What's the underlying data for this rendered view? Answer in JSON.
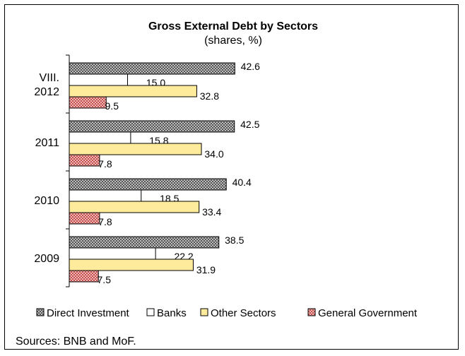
{
  "chart_data": {
    "type": "bar",
    "orientation": "horizontal",
    "title": "Gross External Debt by Sectors",
    "subtitle": "(shares, %)",
    "categories": [
      "VIII. 2012",
      "2011",
      "2010",
      "2009"
    ],
    "category_lines": [
      [
        "VIII.",
        "2012"
      ],
      [
        "2011"
      ],
      [
        "2010"
      ],
      [
        "2009"
      ]
    ],
    "series": [
      {
        "name": "Direct Investment",
        "values": [
          42.6,
          42.5,
          40.4,
          38.5
        ],
        "labels": [
          "42.6",
          "42.5",
          "40.4",
          "38.5"
        ],
        "color": "#8c8c8c",
        "pattern": "checker"
      },
      {
        "name": "Banks",
        "values": [
          15.0,
          15.8,
          18.5,
          22.2
        ],
        "labels": [
          "15.0",
          "15.8",
          "18.5",
          "22.2"
        ],
        "color": "#ffffff",
        "pattern": "none"
      },
      {
        "name": "Other Sectors",
        "values": [
          32.8,
          34.0,
          33.4,
          31.9
        ],
        "labels": [
          "32.8",
          "34.0",
          "33.4",
          "31.9"
        ],
        "color": "#ffeb9c",
        "pattern": "none"
      },
      {
        "name": "General Government",
        "values": [
          9.5,
          7.8,
          7.8,
          7.5
        ],
        "labels": [
          "9.5",
          "7.8",
          "7.8",
          "7.5"
        ],
        "color": "#e89090",
        "pattern": "dots"
      }
    ],
    "xlim": [
      0,
      50
    ],
    "grid": false,
    "legend": "bottom",
    "source": "Sources: BNB and MoF."
  }
}
